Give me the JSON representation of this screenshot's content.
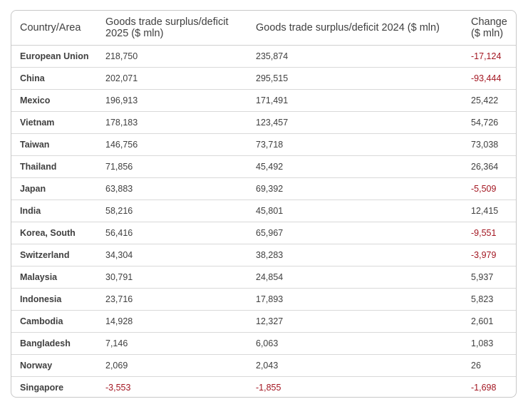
{
  "chart_data": {
    "type": "table",
    "columns": [
      "Country/Area",
      "Goods trade surplus/deficit 2025 ($ mln)",
      "Goods trade surplus/deficit 2024 ($ mln)",
      "Change ($ mln)"
    ],
    "rows": [
      [
        "European Union",
        "218,750",
        "235,874",
        "-17,124"
      ],
      [
        "China",
        "202,071",
        "295,515",
        "-93,444"
      ],
      [
        "Mexico",
        "196,913",
        "171,491",
        "25,422"
      ],
      [
        "Vietnam",
        "178,183",
        "123,457",
        "54,726"
      ],
      [
        "Taiwan",
        "146,756",
        "73,718",
        "73,038"
      ],
      [
        "Thailand",
        "71,856",
        "45,492",
        "26,364"
      ],
      [
        "Japan",
        "63,883",
        "69,392",
        "-5,509"
      ],
      [
        "India",
        "58,216",
        "45,801",
        "12,415"
      ],
      [
        "Korea, South",
        "56,416",
        "65,967",
        "-9,551"
      ],
      [
        "Switzerland",
        "34,304",
        "38,283",
        "-3,979"
      ],
      [
        "Malaysia",
        "30,791",
        "24,854",
        "5,937"
      ],
      [
        "Indonesia",
        "23,716",
        "17,893",
        "5,823"
      ],
      [
        "Cambodia",
        "14,928",
        "12,327",
        "2,601"
      ],
      [
        "Bangladesh",
        "7,146",
        "6,063",
        "1,083"
      ],
      [
        "Norway",
        "2,069",
        "2,043",
        "26"
      ],
      [
        "Singapore",
        "-3,553",
        "-1,855",
        "-1,698"
      ]
    ]
  },
  "colors": {
    "text": "#404040",
    "negative": "#a31621",
    "border": "#c8c8c8"
  }
}
